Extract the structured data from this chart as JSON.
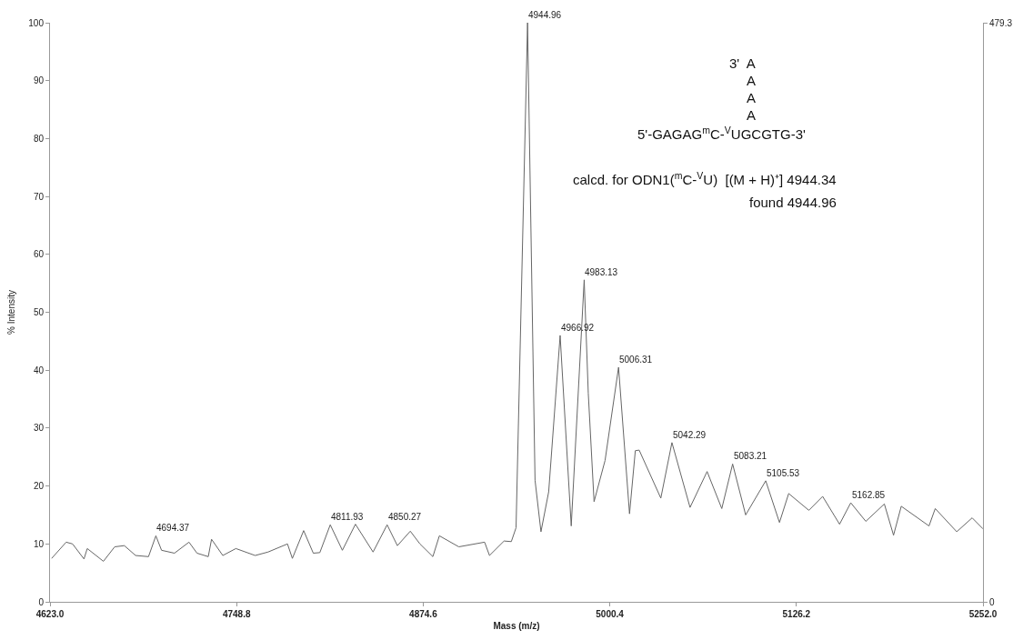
{
  "chart_data": {
    "type": "line",
    "xlabel": "Mass (m/z)",
    "ylabel": "% Intensity",
    "x": [
      4624.1,
      4633.9,
      4638.2,
      4645.9,
      4648.1,
      4659.0,
      4666.6,
      4673.1,
      4680.7,
      4689.4,
      4694.37,
      4698.2,
      4706.9,
      4716.7,
      4722.1,
      4729.7,
      4731.9,
      4739.5,
      4748.3,
      4761.3,
      4770.0,
      4783.1,
      4786.4,
      4794.0,
      4800.5,
      4804.9,
      4811.93,
      4820.1,
      4828.9,
      4840.8,
      4850.27,
      4857.2,
      4865.9,
      4872.4,
      4881.1,
      4885.5,
      4898.6,
      4916.0,
      4919.3,
      4929.1,
      4934.0,
      4937.2,
      4944.96,
      4950.0,
      4954.0,
      4959.2,
      4966.92,
      4974.4,
      4983.13,
      4985.9,
      4989.8,
      4997.2,
      5006.31,
      5008.0,
      5013.7,
      5017.6,
      5020.2,
      5034.8,
      5042.29,
      5054.5,
      5066.0,
      5075.9,
      5083.21,
      5092.0,
      5105.53,
      5114.8,
      5121.0,
      5134.6,
      5143.9,
      5155.3,
      5162.85,
      5173.0,
      5185.5,
      5191.7,
      5196.9,
      5215.6,
      5219.8,
      5234.3,
      5244.7,
      5252.0
    ],
    "series": [
      {
        "color": "#666666",
        "values": [
          7.5,
          10.3,
          10,
          7.4,
          9.2,
          7,
          9.5,
          9.7,
          8,
          7.8,
          11.4,
          8.9,
          8.4,
          10.3,
          8.4,
          7.8,
          10.8,
          8,
          9.2,
          8,
          8.6,
          10,
          7.5,
          12.3,
          8.4,
          8.5,
          13.3,
          8.9,
          13.4,
          8.6,
          13.3,
          9.7,
          12.2,
          10,
          7.8,
          11.4,
          9.5,
          10.3,
          8,
          10.5,
          10.4,
          12.8,
          100,
          21,
          12.1,
          19,
          46,
          13.1,
          55.6,
          36,
          17.3,
          24.4,
          40.5,
          34.7,
          15.2,
          26.1,
          26.2,
          17.9,
          27.5,
          16.3,
          22.5,
          16.1,
          23.8,
          15,
          20.9,
          13.7,
          18.7,
          15.8,
          18.2,
          13.4,
          17.1,
          13.9,
          16.9,
          11.5,
          16.5,
          13.1,
          16.1,
          12.1,
          14.5,
          12.6
        ]
      }
    ],
    "xlim": [
      4623.0,
      5252.0
    ],
    "xticks": [
      {
        "value": 4623.0,
        "label": "4623.0"
      },
      {
        "value": 4748.8,
        "label": "4748.8"
      },
      {
        "value": 4874.6,
        "label": "4874.6"
      },
      {
        "value": 5000.4,
        "label": "5000.4"
      },
      {
        "value": 5126.2,
        "label": "5126.2"
      },
      {
        "value": 5252.0,
        "label": "5252.0"
      }
    ],
    "ylim": [
      0,
      100
    ],
    "yticks": [
      0,
      10,
      20,
      30,
      40,
      50,
      60,
      70,
      80,
      90,
      100
    ],
    "y2lim": [
      0,
      479.3
    ],
    "y2ticks": [
      0,
      479.3
    ],
    "legend": false,
    "marker": "none",
    "line_style": "solid",
    "annotations": [
      {
        "text": "4694.37",
        "x": 4694.37,
        "y": 11.4
      },
      {
        "text": "4811.93",
        "x": 4811.93,
        "y": 13.3
      },
      {
        "text": "4850.27",
        "x": 4850.27,
        "y": 13.3
      },
      {
        "text": "4944.96",
        "x": 4944.96,
        "y": 100
      },
      {
        "text": "4966.92",
        "x": 4966.92,
        "y": 46
      },
      {
        "text": "4983.13",
        "x": 4983.13,
        "y": 55.6
      },
      {
        "text": "5006.31",
        "x": 5006.31,
        "y": 40.5
      },
      {
        "text": "5042.29",
        "x": 5042.29,
        "y": 27.5
      },
      {
        "text": "5083.21",
        "x": 5083.21,
        "y": 23.8
      },
      {
        "text": "5105.53",
        "x": 5105.53,
        "y": 20.9
      },
      {
        "text": "5162.85",
        "x": 5162.85,
        "y": 17.1
      },
      "3'  A",
      "A",
      "A",
      "A",
      "5'-GAGAG$^{m}$C-$^{V}$UGCGTG-3'",
      "calcd. for ODN1($^{m}$C-$^{V}$U)  [(M + H)⁺] 4944.34",
      "found 4944.96"
    ]
  }
}
